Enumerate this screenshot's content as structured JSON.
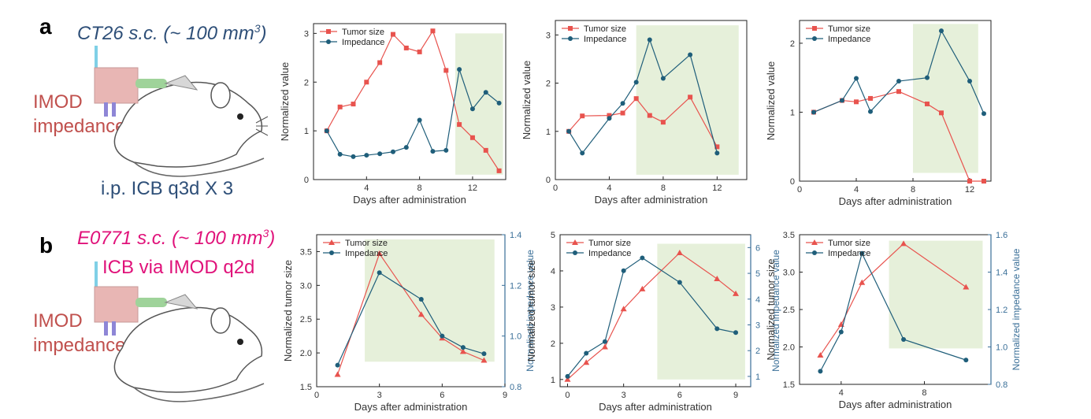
{
  "panel_a": {
    "letter": "a",
    "model": "CT26 s.c. (~ 100 mm",
    "model_sup": "3",
    "model_close": ")",
    "device_line1": "IMOD",
    "device_line2": "impedance",
    "treatment": "i.p. ICB q3d X 3"
  },
  "panel_b": {
    "letter": "b",
    "model": "E0771 s.c. (~ 100 mm",
    "model_sup": "3",
    "model_close": ")",
    "treatment": "ICB via IMOD  q2d",
    "device_line1": "IMOD",
    "device_line2": "impedance"
  },
  "colors": {
    "tumor": "#e8534e",
    "impedance": "#1f5e7a",
    "shade": "#e6f0da",
    "right_axis": "#3a6f98"
  },
  "chart_data": [
    {
      "type": "line",
      "xlabel": "Days after administration",
      "ylabel": "Normalized value",
      "xlim": [
        0,
        14.5
      ],
      "ylim": [
        0,
        3.2
      ],
      "xticks": [
        4,
        8,
        12
      ],
      "yticks": [
        0,
        1,
        2,
        3
      ],
      "legend": "top-left",
      "shade_x": [
        10.7,
        14.3
      ],
      "shade_y": [
        0.1,
        3.0
      ],
      "series": [
        {
          "name": "Tumor size",
          "marker": "square",
          "x": [
            1,
            2,
            3,
            4,
            5,
            6,
            7,
            8,
            9,
            10,
            11,
            12,
            13,
            14
          ],
          "y": [
            1.0,
            1.49,
            1.55,
            2.0,
            2.4,
            2.98,
            2.7,
            2.62,
            3.05,
            2.24,
            1.13,
            0.86,
            0.6,
            0.18
          ]
        },
        {
          "name": "Impedance",
          "marker": "circle",
          "x": [
            1,
            2,
            3,
            4,
            5,
            6,
            7,
            8,
            9,
            10,
            11,
            12,
            13,
            14
          ],
          "y": [
            1.0,
            0.52,
            0.47,
            0.5,
            0.53,
            0.57,
            0.66,
            1.22,
            0.58,
            0.6,
            2.26,
            1.45,
            1.79,
            1.57
          ]
        }
      ]
    },
    {
      "type": "line",
      "xlabel": "Days after administration",
      "ylabel": "Normalized value",
      "xlim": [
        0,
        14.2
      ],
      "ylim": [
        0,
        3.3
      ],
      "xticks": [
        0,
        4,
        8,
        12
      ],
      "yticks": [
        0,
        1,
        2,
        3
      ],
      "legend": "top-left",
      "shade_x": [
        6.0,
        13.6
      ],
      "shade_y": [
        0.1,
        3.2
      ],
      "series": [
        {
          "name": "Tumor size",
          "marker": "square",
          "x": [
            1,
            2,
            4,
            5,
            6,
            7,
            8,
            10,
            12
          ],
          "y": [
            1.0,
            1.32,
            1.33,
            1.38,
            1.68,
            1.33,
            1.19,
            1.71,
            0.68
          ]
        },
        {
          "name": "Impedance",
          "marker": "circle",
          "x": [
            1,
            2,
            4,
            5,
            6,
            7,
            8,
            10,
            12
          ],
          "y": [
            1.0,
            0.55,
            1.27,
            1.58,
            2.02,
            2.9,
            2.1,
            2.59,
            0.55
          ]
        }
      ]
    },
    {
      "type": "line",
      "xlabel": "Days after administration",
      "ylabel": "Normalized value",
      "xlim": [
        0,
        13.5
      ],
      "ylim": [
        0,
        2.33
      ],
      "xticks": [
        0,
        4,
        8,
        12
      ],
      "yticks": [
        0,
        1,
        2
      ],
      "legend": "top-left",
      "shade_x": [
        8.0,
        12.6
      ],
      "shade_y": [
        0.12,
        2.28
      ],
      "series": [
        {
          "name": "Tumor size",
          "marker": "square",
          "x": [
            1,
            3,
            4,
            5,
            7,
            9,
            10,
            12,
            13
          ],
          "y": [
            1.0,
            1.17,
            1.15,
            1.2,
            1.3,
            1.12,
            0.99,
            0.0,
            0.0
          ]
        },
        {
          "name": "Impedance",
          "marker": "circle",
          "x": [
            1,
            3,
            4,
            5,
            7,
            9,
            10,
            12,
            13
          ],
          "y": [
            1.0,
            1.17,
            1.49,
            1.01,
            1.45,
            1.5,
            2.18,
            1.45,
            0.98
          ]
        }
      ]
    },
    {
      "type": "line",
      "xlabel": "Days after administration",
      "ylabel": "Normalized tumor size",
      "y2label": "Normalized impedance value",
      "xlim": [
        0,
        9
      ],
      "ylim": [
        1.5,
        3.75
      ],
      "y2lim": [
        0.8,
        1.4
      ],
      "xticks": [
        0,
        3,
        6,
        9
      ],
      "yticks": [
        1.5,
        2.0,
        2.5,
        3.0,
        3.5
      ],
      "y2ticks": [
        0.8,
        1.0,
        1.2,
        1.4
      ],
      "legend": "top-left",
      "shade_x": [
        2.3,
        8.5
      ],
      "shade_y": [
        1.87,
        3.68
      ],
      "series": [
        {
          "name": "Tumor size",
          "marker": "triangle",
          "axis": "left",
          "x": [
            1,
            3,
            5,
            6,
            7,
            8
          ],
          "y": [
            1.68,
            3.47,
            2.57,
            2.22,
            2.02,
            1.89
          ]
        },
        {
          "name": "Impedance",
          "marker": "circle",
          "axis": "right",
          "x": [
            1,
            3,
            5,
            6,
            7,
            8
          ],
          "y": [
            0.885,
            1.25,
            1.145,
            1.0,
            0.955,
            0.93
          ]
        }
      ]
    },
    {
      "type": "line",
      "xlabel": "Days after administration",
      "ylabel": "Normalized tumor size",
      "y2label": "Normalized impedance value",
      "xlim": [
        -0.4,
        9.8
      ],
      "ylim": [
        0.8,
        5.0
      ],
      "y2lim": [
        0.6,
        6.5
      ],
      "xticks": [
        0,
        3,
        6,
        9
      ],
      "yticks": [
        1,
        2,
        3,
        4,
        5
      ],
      "y2ticks": [
        1,
        2,
        3,
        4,
        5,
        6
      ],
      "legend": "top-left",
      "shade_x": [
        4.8,
        9.5
      ],
      "shade_y": [
        1.0,
        4.75
      ],
      "series": [
        {
          "name": "Tumor size",
          "marker": "triangle",
          "axis": "left",
          "x": [
            0,
            1,
            2,
            3,
            4,
            6,
            8,
            9
          ],
          "y": [
            1.0,
            1.47,
            1.9,
            2.95,
            3.5,
            4.5,
            3.78,
            3.37
          ]
        },
        {
          "name": "Impedance",
          "marker": "circle",
          "axis": "right",
          "x": [
            0,
            1,
            2,
            3,
            4,
            6,
            8,
            9
          ],
          "y": [
            1.0,
            1.9,
            2.35,
            5.1,
            5.6,
            4.65,
            2.85,
            2.7
          ]
        }
      ]
    },
    {
      "type": "line",
      "xlabel": "Days after administration",
      "ylabel": "Normalized tumor size",
      "y2label": "Normalized impedance value",
      "xlim": [
        2,
        11.2
      ],
      "ylim": [
        1.5,
        3.5
      ],
      "y2lim": [
        0.8,
        1.6
      ],
      "xticks": [
        4,
        8
      ],
      "yticks": [
        1.5,
        2.0,
        2.5,
        3.0,
        3.5
      ],
      "y2ticks": [
        0.8,
        1.0,
        1.2,
        1.4,
        1.6
      ],
      "legend": "top-left",
      "shade_x": [
        6.3,
        10.8
      ],
      "shade_y": [
        1.98,
        3.42
      ],
      "series": [
        {
          "name": "Tumor size",
          "marker": "triangle",
          "axis": "left",
          "x": [
            3,
            4,
            5,
            7,
            10
          ],
          "y": [
            1.89,
            2.3,
            2.86,
            3.38,
            2.8
          ]
        },
        {
          "name": "Impedance",
          "marker": "circle",
          "axis": "right",
          "x": [
            3,
            4,
            5,
            7,
            10
          ],
          "y": [
            0.87,
            1.08,
            1.5,
            1.04,
            0.93
          ]
        }
      ]
    }
  ]
}
